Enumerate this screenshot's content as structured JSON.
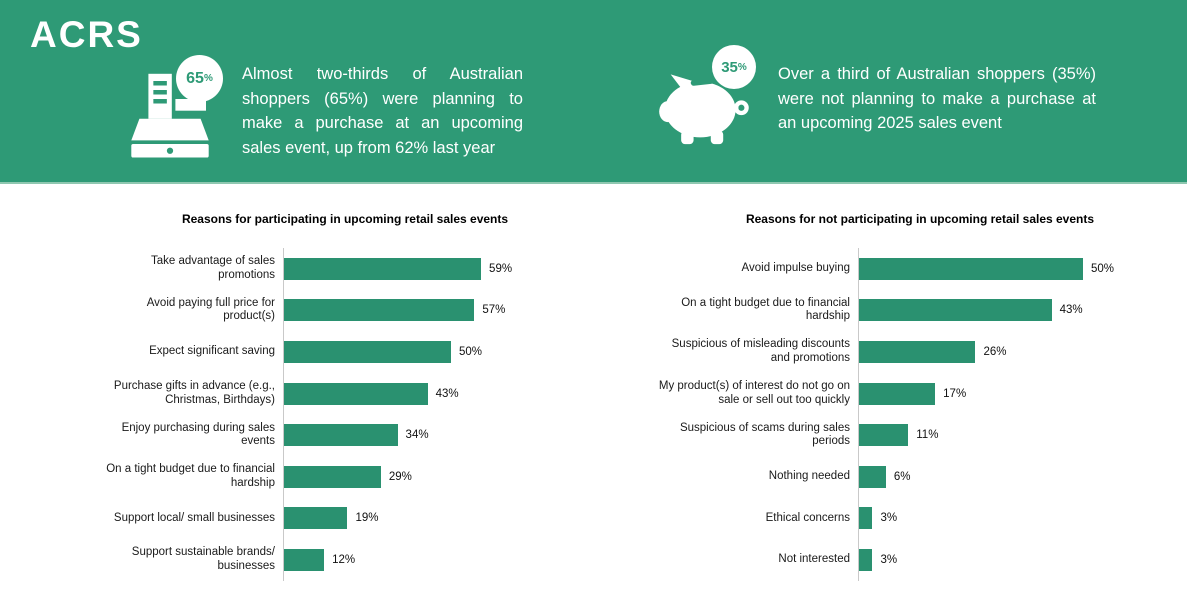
{
  "brand": {
    "name": "ACRS"
  },
  "theme": {
    "banner_green": "#2E9A76",
    "bar_green": "#2A9170",
    "badge_text_green": "#2E9A76",
    "axis_gray": "#C9C9C9"
  },
  "header": {
    "left_stat": {
      "icon": "cash-register",
      "badge": {
        "value": "65",
        "suffix": "%"
      },
      "text": "Almost two-thirds of Australian shoppers (65%) were planning to make a purchase at an upcoming sales event, up from 62% last year"
    },
    "right_stat": {
      "icon": "piggy-bank",
      "badge": {
        "value": "35",
        "suffix": "%"
      },
      "text": "Over a third of Australian shoppers (35%) were not planning to make a purchase at an upcoming 2025 sales event"
    }
  },
  "chart_data": [
    {
      "type": "bar",
      "orientation": "horizontal",
      "title": "Reasons for participating in upcoming retail sales events",
      "categories": [
        "Take advantage of sales promotions",
        "Avoid paying full price for product(s)",
        "Expect significant saving",
        "Purchase gifts in advance (e.g., Christmas, Birthdays)",
        "Enjoy purchasing during sales events",
        "On a tight budget due to financial hardship",
        "Support local/ small businesses",
        "Support sustainable brands/ businesses"
      ],
      "values": [
        59,
        57,
        50,
        43,
        34,
        29,
        19,
        12
      ],
      "value_suffix": "%",
      "xlim": [
        0,
        100
      ],
      "bar_color": "#2A9170",
      "data_labels": true,
      "grid": false,
      "legend": false
    },
    {
      "type": "bar",
      "orientation": "horizontal",
      "title": "Reasons for not participating in upcoming retail sales events",
      "categories": [
        "Avoid impulse buying",
        "On a tight budget due to financial hardship",
        "Suspicious of misleading discounts and promotions",
        "My product(s) of interest do not go on sale or sell out too quickly",
        "Suspicious of scams during sales periods",
        "Nothing needed",
        "Ethical concerns",
        "Not interested"
      ],
      "values": [
        50,
        43,
        26,
        17,
        11,
        6,
        3,
        3
      ],
      "value_suffix": "%",
      "xlim": [
        0,
        100
      ],
      "bar_color": "#2A9170",
      "data_labels": true,
      "grid": false,
      "legend": false
    }
  ]
}
